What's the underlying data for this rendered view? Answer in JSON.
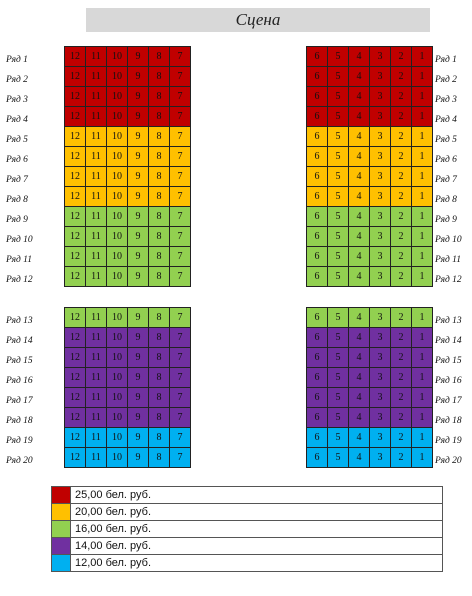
{
  "stage_label": "Сцена",
  "colors": {
    "red": "#c00000",
    "orange": "#ffc000",
    "green": "#92d050",
    "purple": "#7030a0",
    "blue": "#00b0f0"
  },
  "left_seats": [
    "12",
    "11",
    "10",
    "9",
    "8",
    "7"
  ],
  "right_seats": [
    "6",
    "5",
    "4",
    "3",
    "2",
    "1"
  ],
  "rows": [
    {
      "label": "Ряд 1",
      "color": "red"
    },
    {
      "label": "Ряд 2",
      "color": "red"
    },
    {
      "label": "Ряд 3",
      "color": "red"
    },
    {
      "label": "Ряд 4",
      "color": "red"
    },
    {
      "label": "Ряд 5",
      "color": "orange"
    },
    {
      "label": "Ряд 6",
      "color": "orange"
    },
    {
      "label": "Ряд 7",
      "color": "orange"
    },
    {
      "label": "Ряд 8",
      "color": "orange"
    },
    {
      "label": "Ряд 9",
      "color": "green"
    },
    {
      "label": "Ряд 10",
      "color": "green"
    },
    {
      "label": "Ряд 11",
      "color": "green"
    },
    {
      "label": "Ряд 12",
      "color": "green"
    },
    {
      "label": "Ряд 13",
      "color": "green"
    },
    {
      "label": "Ряд 14",
      "color": "purple"
    },
    {
      "label": "Ряд 15",
      "color": "purple"
    },
    {
      "label": "Ряд 16",
      "color": "purple"
    },
    {
      "label": "Ряд 17",
      "color": "purple"
    },
    {
      "label": "Ряд 18",
      "color": "purple"
    },
    {
      "label": "Ряд 19",
      "color": "blue"
    },
    {
      "label": "Ряд 20",
      "color": "blue"
    }
  ],
  "legend": [
    {
      "color": "red",
      "price": "25,00 бел. руб."
    },
    {
      "color": "orange",
      "price": "20,00 бел. руб."
    },
    {
      "color": "green",
      "price": "16,00 бел. руб."
    },
    {
      "color": "purple",
      "price": "14,00 бел. руб."
    },
    {
      "color": "blue",
      "price": "12,00 бел. руб."
    }
  ]
}
